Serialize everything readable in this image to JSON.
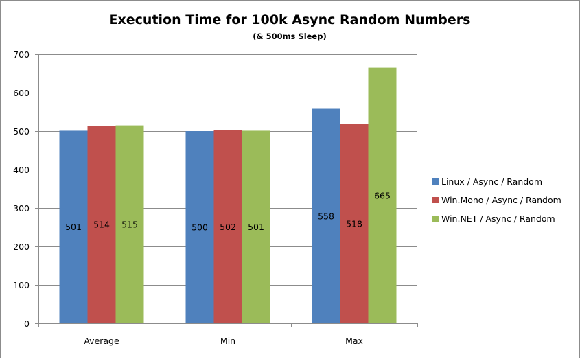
{
  "chart_data": {
    "type": "bar",
    "title": "Execution Time for 100k Async Random Numbers",
    "subtitle": "(& 500ms Sleep)",
    "xlabel": "",
    "ylabel": "",
    "categories": [
      "Average",
      "Min",
      "Max"
    ],
    "series": [
      {
        "name": "Linux / Async / Random",
        "color": "#4f81bd",
        "values": [
          501,
          500,
          558
        ]
      },
      {
        "name": "Win.Mono / Async / Random",
        "color": "#c0504d",
        "values": [
          514,
          502,
          518
        ]
      },
      {
        "name": "Win.NET / Async / Random",
        "color": "#9bbb59",
        "values": [
          515,
          501,
          665
        ]
      }
    ],
    "ylim": [
      0,
      700
    ],
    "yticks": [
      0,
      100,
      200,
      300,
      400,
      500,
      600,
      700
    ],
    "grid": true,
    "legend_position": "right",
    "data_labels": true
  }
}
